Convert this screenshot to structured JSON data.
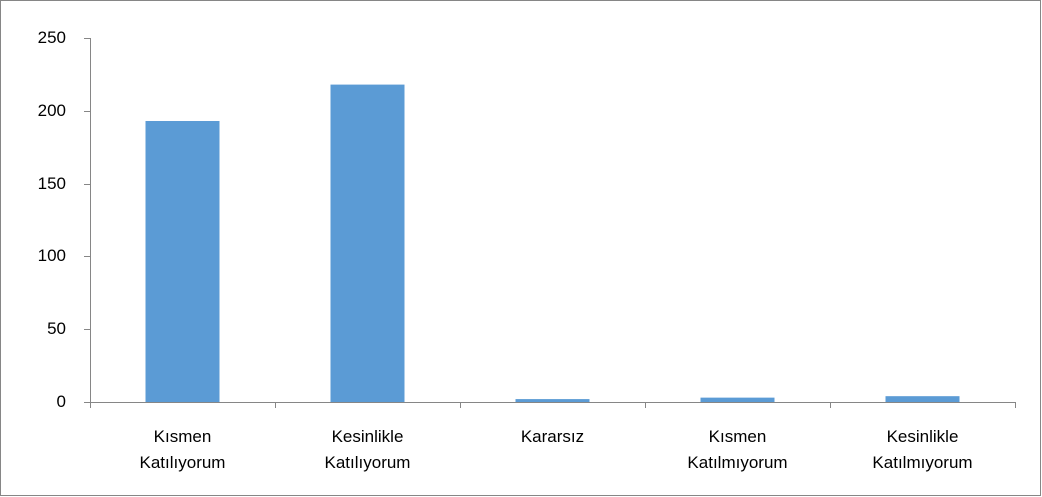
{
  "chart_data": {
    "type": "bar",
    "categories": [
      "Kısmen Katılıyorum",
      "Kesinlikle Katılıyorum",
      "Kararsız",
      "Kısmen Katılmıyorum",
      "Kesinlikle Katılmıyorum"
    ],
    "values": [
      193,
      218,
      2,
      3,
      4
    ],
    "color": "#5b9bd5",
    "ylim": [
      0,
      250
    ],
    "yticks": [
      0,
      50,
      100,
      150,
      200,
      250
    ],
    "grid": false
  }
}
